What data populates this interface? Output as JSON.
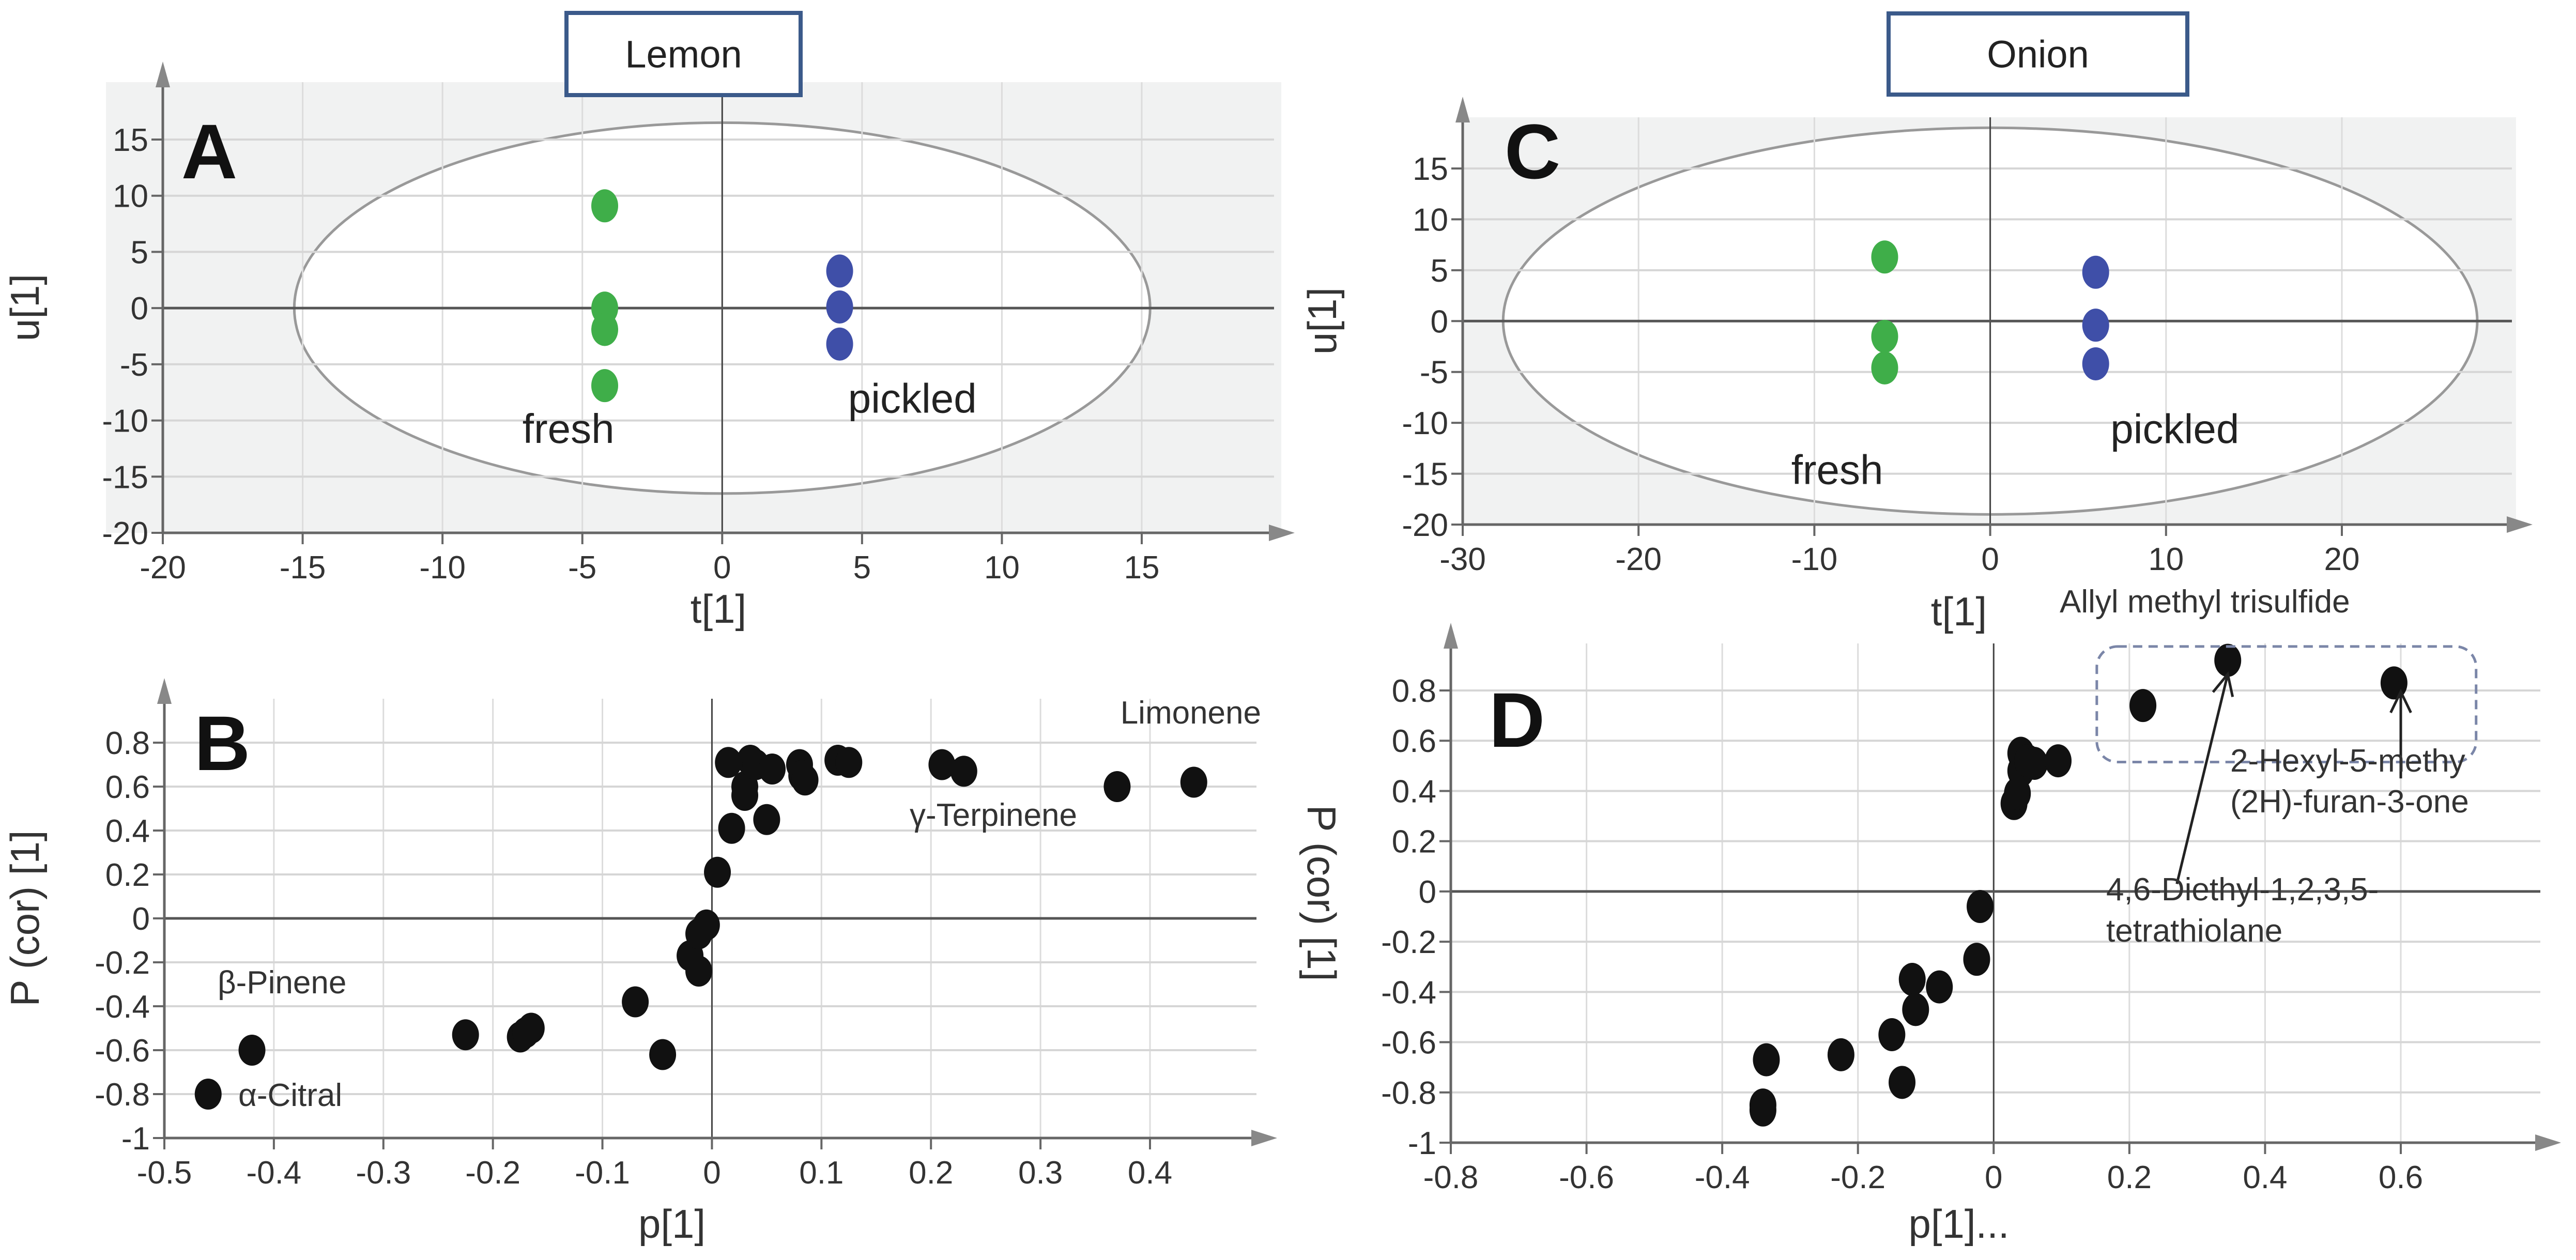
{
  "chart_data": [
    {
      "type": "scatter",
      "panel": "A",
      "title": "Lemon",
      "xlabel": "t[1]",
      "ylabel": "u[1]",
      "xlim": [
        -20,
        19
      ],
      "ylim": [
        -20,
        18
      ],
      "xticks": [
        -20,
        -15,
        -10,
        -5,
        0,
        5,
        10,
        15
      ],
      "yticks": [
        15,
        10,
        5,
        0,
        -5,
        -10,
        -15,
        -20
      ],
      "grid": true,
      "ellipse": {
        "cx": 0,
        "cy": 0,
        "rx": 15.3,
        "ry": 16.5
      },
      "series": [
        {
          "name": "fresh",
          "color": "#3fae49",
          "x": [
            -4.2,
            -4.2,
            -4.2,
            -4.2
          ],
          "y": [
            9.1,
            0,
            -1.9,
            -6.9
          ]
        },
        {
          "name": "pickled",
          "color": "#3f4fa8",
          "x": [
            4.2,
            4.2,
            4.2
          ],
          "y": [
            3.3,
            0.1,
            -3.2
          ]
        }
      ]
    },
    {
      "type": "scatter",
      "panel": "B",
      "xlabel": "p[1]",
      "ylabel": "P (cor) [1]",
      "xlim": [
        -0.5,
        0.5
      ],
      "ylim": [
        -1,
        0.95
      ],
      "xticks": [
        -0.5,
        -0.4,
        -0.3,
        -0.2,
        -0.1,
        0,
        0.1,
        0.2,
        0.3,
        0.4
      ],
      "yticks": [
        0.8,
        0.6,
        0.4,
        0.2,
        0,
        -0.2,
        -0.4,
        -0.6,
        -0.8,
        -1
      ],
      "grid": true,
      "series": [
        {
          "name": "variables",
          "color": "#111111",
          "x": [
            -0.46,
            -0.42,
            -0.225,
            -0.175,
            -0.17,
            -0.165,
            -0.07,
            -0.045,
            -0.02,
            -0.012,
            -0.012,
            -0.005,
            0.005,
            0.015,
            0.018,
            0.03,
            0.03,
            0.035,
            0.04,
            0.05,
            0.055,
            0.08,
            0.082,
            0.085,
            0.115,
            0.125,
            0.21,
            0.23,
            0.37,
            0.44
          ],
          "y": [
            -0.8,
            -0.6,
            -0.53,
            -0.54,
            -0.52,
            -0.5,
            -0.38,
            -0.62,
            -0.17,
            -0.24,
            -0.07,
            -0.03,
            0.21,
            0.71,
            0.41,
            0.6,
            0.56,
            0.72,
            0.7,
            0.45,
            0.68,
            0.7,
            0.65,
            0.63,
            0.72,
            0.71,
            0.7,
            0.67,
            0.6,
            0.62
          ]
        }
      ],
      "annotations": [
        "Limonene",
        "γ-Terpinene",
        "β-Pinene",
        "α-Citral"
      ]
    },
    {
      "type": "scatter",
      "panel": "C",
      "title": "Onion",
      "xlabel": "t[1]",
      "ylabel": "u[1]",
      "xlim": [
        -30,
        30
      ],
      "ylim": [
        -20,
        19
      ],
      "xticks": [
        -30,
        -20,
        -10,
        0,
        10,
        20
      ],
      "yticks": [
        15,
        10,
        5,
        0,
        -5,
        -10,
        -15,
        -20
      ],
      "grid": true,
      "ellipse": {
        "cx": 0,
        "cy": 0,
        "rx": 27.7,
        "ry": 19
      },
      "series": [
        {
          "name": "fresh",
          "color": "#3fae49",
          "x": [
            -6,
            -6,
            -6
          ],
          "y": [
            6.3,
            -1.5,
            -4.6
          ]
        },
        {
          "name": "pickled",
          "color": "#3f4fa8",
          "x": [
            6,
            6,
            6
          ],
          "y": [
            4.8,
            -0.4,
            -4.2
          ]
        }
      ]
    },
    {
      "type": "scatter",
      "panel": "D",
      "xlabel": "p[1]...",
      "ylabel": "P (cor) [1]",
      "xlim": [
        -0.8,
        0.8
      ],
      "ylim": [
        -1,
        0.95
      ],
      "xticks": [
        -0.8,
        -0.6,
        -0.4,
        -0.2,
        0,
        0.2,
        0.4,
        0.6
      ],
      "yticks": [
        0.8,
        0.6,
        0.4,
        0.2,
        0,
        -0.2,
        -0.4,
        -0.6,
        -0.8,
        -1
      ],
      "grid": true,
      "series": [
        {
          "name": "variables",
          "color": "#111111",
          "x": [
            -0.335,
            -0.34,
            -0.34,
            -0.225,
            -0.15,
            -0.135,
            -0.12,
            -0.115,
            -0.08,
            -0.025,
            -0.02,
            0.03,
            0.035,
            0.04,
            0.04,
            0.05,
            0.06,
            0.095,
            0.22,
            0.345,
            0.59
          ],
          "y": [
            -0.67,
            -0.85,
            -0.87,
            -0.65,
            -0.57,
            -0.76,
            -0.35,
            -0.47,
            -0.38,
            -0.27,
            -0.06,
            0.35,
            0.39,
            0.48,
            0.55,
            0.52,
            0.51,
            0.52,
            0.74,
            0.92,
            0.83
          ]
        }
      ],
      "annotations": [
        "Allyl methyl trisulfide",
        "2-Hexyl-5-methy",
        "(2H)-furan-3-one",
        "4,6-Diethyl-1,2,3,5-",
        "tetrathiolane"
      ]
    }
  ]
}
